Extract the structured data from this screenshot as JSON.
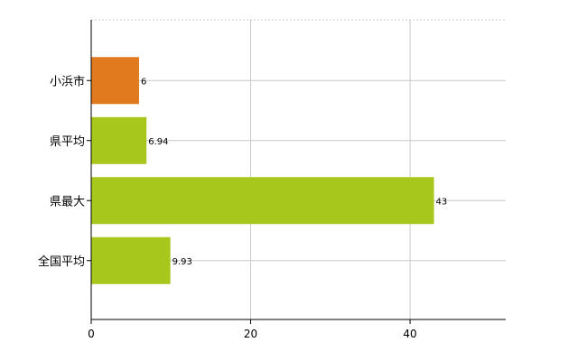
{
  "chart_data": {
    "type": "bar",
    "orientation": "horizontal",
    "categories": [
      "小浜市",
      "県平均",
      "県最大",
      "全国平均"
    ],
    "values": [
      6,
      6.94,
      43,
      9.93
    ],
    "data_labels": [
      "6",
      "6.94",
      "43",
      "9.93"
    ],
    "bar_colors": [
      "#e07a1f",
      "#a8c71c",
      "#a8c71c",
      "#a8c71c"
    ],
    "xlim": [
      0,
      52
    ],
    "xticks": [
      0,
      20,
      40
    ],
    "xtick_labels": [
      "0",
      "20",
      "40"
    ],
    "grid": true,
    "legend": "none",
    "title": "",
    "xlabel": "",
    "ylabel": ""
  }
}
